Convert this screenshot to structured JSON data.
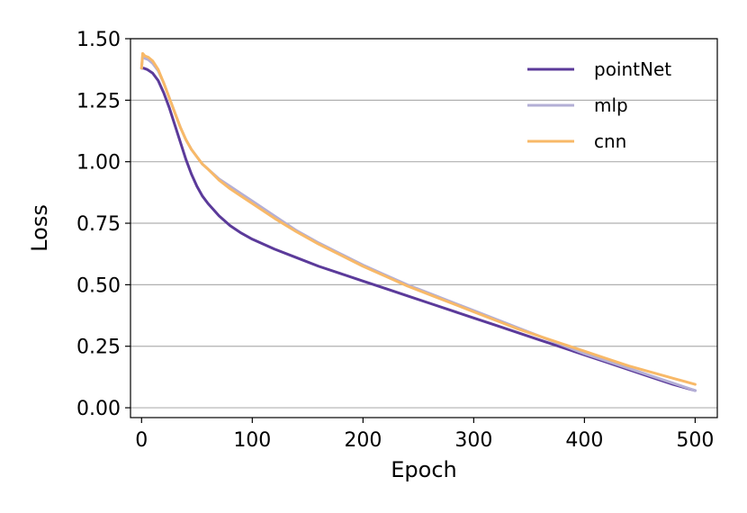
{
  "chart_data": {
    "type": "line",
    "title": "",
    "xlabel": "Epoch",
    "ylabel": "Loss",
    "xlim": [
      -10,
      520
    ],
    "ylim": [
      -0.04,
      1.5
    ],
    "xticks": [
      0,
      100,
      200,
      300,
      400,
      500
    ],
    "xtick_labels": [
      "0",
      "100",
      "200",
      "300",
      "400",
      "500"
    ],
    "yticks": [
      0.0,
      0.25,
      0.5,
      0.75,
      1.0,
      1.25,
      1.5
    ],
    "ytick_labels": [
      "0.00",
      "0.25",
      "0.50",
      "0.75",
      "1.00",
      "1.25",
      "1.50"
    ],
    "grid": "horizontal",
    "legend_position": "top-right",
    "series": [
      {
        "name": "pointNet",
        "color": "#5b3a9a",
        "x": [
          0,
          2,
          5,
          10,
          15,
          20,
          25,
          30,
          35,
          40,
          45,
          50,
          55,
          60,
          70,
          80,
          90,
          100,
          120,
          140,
          160,
          180,
          200,
          220,
          240,
          260,
          280,
          300,
          320,
          340,
          360,
          380,
          400,
          420,
          440,
          460,
          480,
          500
        ],
        "values": [
          1.38,
          1.38,
          1.375,
          1.36,
          1.33,
          1.28,
          1.22,
          1.15,
          1.08,
          1.01,
          0.95,
          0.9,
          0.86,
          0.83,
          0.78,
          0.74,
          0.71,
          0.685,
          0.645,
          0.61,
          0.575,
          0.545,
          0.515,
          0.485,
          0.455,
          0.425,
          0.395,
          0.365,
          0.335,
          0.305,
          0.275,
          0.245,
          0.215,
          0.185,
          0.155,
          0.125,
          0.095,
          0.07
        ]
      },
      {
        "name": "mlp",
        "color": "#b3afd6",
        "x": [
          0,
          1,
          3,
          6,
          10,
          15,
          20,
          25,
          30,
          35,
          40,
          45,
          50,
          55,
          60,
          70,
          80,
          90,
          100,
          120,
          140,
          160,
          180,
          200,
          220,
          240,
          260,
          280,
          300,
          320,
          340,
          360,
          380,
          400,
          420,
          440,
          460,
          480,
          500
        ],
        "values": [
          1.38,
          1.43,
          1.42,
          1.415,
          1.4,
          1.37,
          1.32,
          1.26,
          1.2,
          1.14,
          1.09,
          1.05,
          1.02,
          0.99,
          0.97,
          0.93,
          0.9,
          0.87,
          0.84,
          0.78,
          0.72,
          0.67,
          0.625,
          0.58,
          0.54,
          0.5,
          0.465,
          0.43,
          0.395,
          0.36,
          0.325,
          0.29,
          0.255,
          0.22,
          0.19,
          0.16,
          0.13,
          0.1,
          0.07
        ]
      },
      {
        "name": "cnn",
        "color": "#f8b968",
        "x": [
          0,
          1,
          3,
          6,
          10,
          15,
          20,
          25,
          30,
          35,
          40,
          45,
          50,
          55,
          60,
          70,
          80,
          90,
          100,
          120,
          140,
          160,
          180,
          200,
          220,
          240,
          260,
          280,
          300,
          320,
          340,
          360,
          380,
          400,
          420,
          440,
          460,
          480,
          500
        ],
        "values": [
          1.38,
          1.44,
          1.43,
          1.425,
          1.41,
          1.375,
          1.32,
          1.26,
          1.2,
          1.14,
          1.09,
          1.05,
          1.02,
          0.99,
          0.97,
          0.925,
          0.89,
          0.86,
          0.83,
          0.77,
          0.715,
          0.665,
          0.62,
          0.575,
          0.535,
          0.495,
          0.46,
          0.425,
          0.39,
          0.355,
          0.32,
          0.29,
          0.26,
          0.23,
          0.2,
          0.17,
          0.145,
          0.12,
          0.095
        ]
      }
    ]
  }
}
